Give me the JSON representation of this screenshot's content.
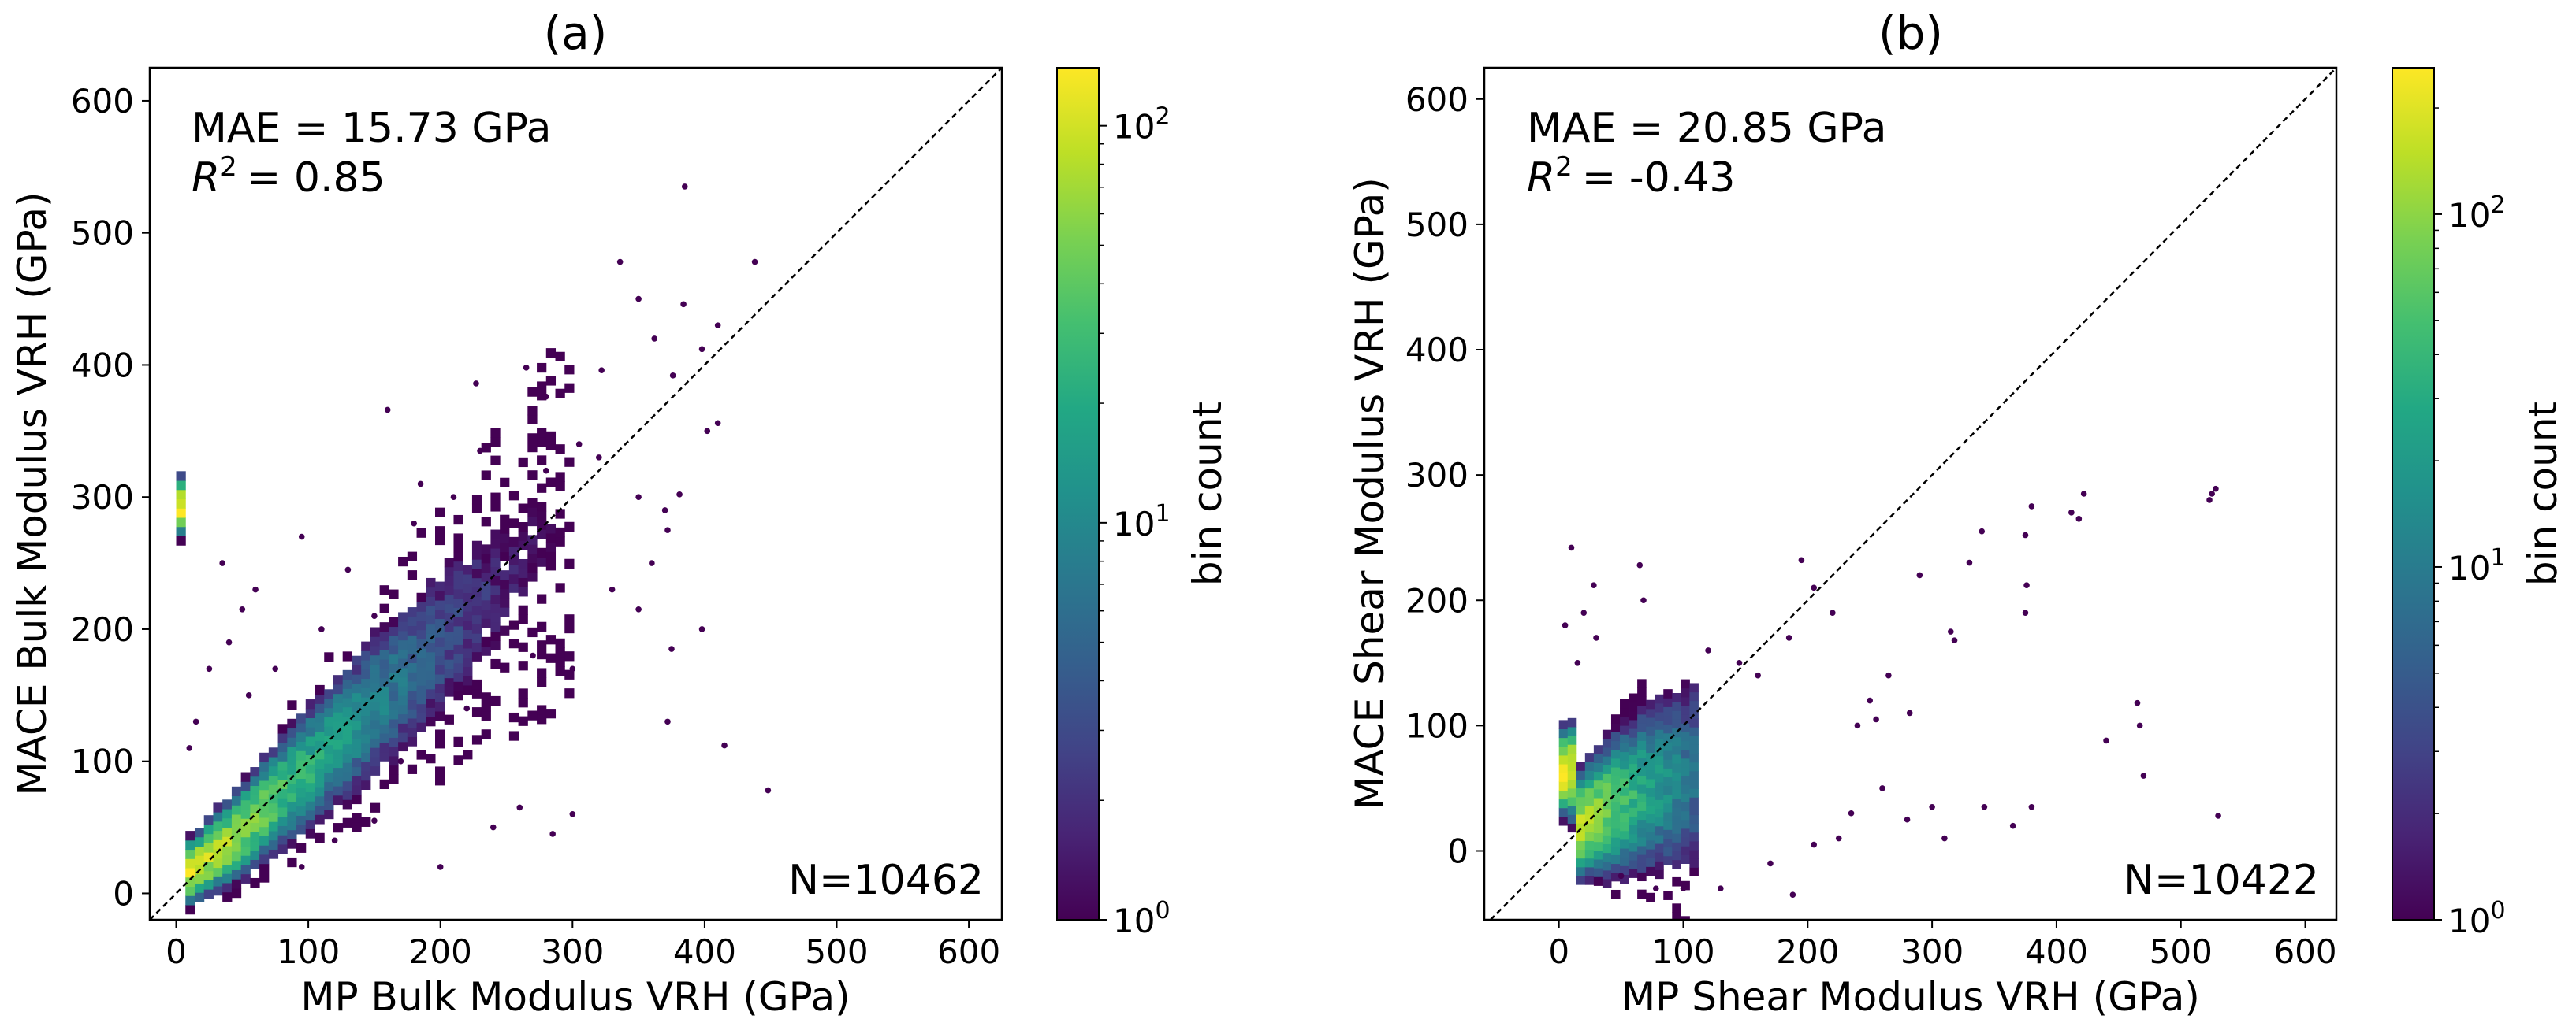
{
  "chart_data": [
    {
      "type": "scatter",
      "panel_label": "(a)",
      "xlabel": "MP Bulk Modulus VRH (GPa)",
      "ylabel": "MACE Bulk Modulus VRH (GPa)",
      "xlim": [
        -20,
        625
      ],
      "ylim": [
        -20,
        625
      ],
      "xticks": [
        0,
        100,
        200,
        300,
        400,
        500,
        600
      ],
      "yticks": [
        0,
        100,
        200,
        300,
        400,
        500,
        600
      ],
      "annotations": {
        "mae": "MAE = 15.73 GPa",
        "r2_value": "= 0.85",
        "n": "N=10462"
      },
      "colorbar": {
        "label": "bin count",
        "scale": "log",
        "min": 1,
        "max": 140,
        "ticks": [
          "10",
          "10",
          "10"
        ],
        "tick_exponents": [
          "0",
          "1",
          "2"
        ],
        "tick_values": [
          1,
          10,
          100
        ]
      },
      "diagonal": "y = x",
      "density_ridge": {
        "center": [
          [
            5,
            12
          ],
          [
            40,
            38
          ],
          [
            100,
            95
          ],
          [
            180,
            170
          ],
          [
            240,
            230
          ],
          [
            300,
            290
          ]
        ],
        "peak_count": 140
      },
      "outliers": [
        [
          385,
          535
        ],
        [
          336,
          478
        ],
        [
          384,
          446
        ],
        [
          438,
          478
        ],
        [
          410,
          430
        ],
        [
          350,
          450
        ],
        [
          362,
          420
        ],
        [
          398,
          412
        ],
        [
          376,
          392
        ],
        [
          410,
          356
        ],
        [
          322,
          396
        ],
        [
          265,
          398
        ],
        [
          280,
          376
        ],
        [
          227,
          386
        ],
        [
          160,
          366
        ],
        [
          305,
          340
        ],
        [
          280,
          320
        ],
        [
          350,
          300
        ],
        [
          370,
          290
        ],
        [
          372,
          275
        ],
        [
          402,
          350
        ],
        [
          381,
          302
        ],
        [
          360,
          250
        ],
        [
          398,
          200
        ],
        [
          350,
          215
        ],
        [
          375,
          185
        ],
        [
          415,
          112
        ],
        [
          448,
          78
        ],
        [
          372,
          130
        ],
        [
          260,
          65
        ],
        [
          285,
          45
        ],
        [
          300,
          60
        ],
        [
          200,
          20
        ],
        [
          240,
          50
        ],
        [
          150,
          55
        ],
        [
          120,
          40
        ],
        [
          95,
          20
        ],
        [
          50,
          215
        ],
        [
          60,
          230
        ],
        [
          40,
          190
        ],
        [
          35,
          250
        ],
        [
          95,
          270
        ],
        [
          130,
          245
        ],
        [
          180,
          280
        ],
        [
          210,
          300
        ],
        [
          25,
          170
        ],
        [
          15,
          130
        ],
        [
          10,
          110
        ],
        [
          320,
          330
        ],
        [
          255,
          300
        ],
        [
          230,
          335
        ],
        [
          185,
          310
        ],
        [
          300,
          170
        ],
        [
          330,
          230
        ],
        [
          270,
          180
        ],
        [
          220,
          140
        ],
        [
          170,
          100
        ],
        [
          150,
          210
        ],
        [
          75,
          170
        ],
        [
          55,
          150
        ],
        [
          110,
          200
        ]
      ]
    },
    {
      "type": "scatter",
      "panel_label": "(b)",
      "xlabel": "MP Shear Modulus VRH (GPa)",
      "ylabel": "MACE Shear Modulus VRH (GPa)",
      "xlim": [
        -60,
        625
      ],
      "ylim": [
        -55,
        625
      ],
      "xticks": [
        0,
        100,
        200,
        300,
        400,
        500,
        600
      ],
      "yticks": [
        0,
        100,
        200,
        300,
        400,
        500,
        600
      ],
      "annotations": {
        "mae": "MAE = 20.85 GPa",
        "r2_value": "= -0.43",
        "n": "N=10422"
      },
      "colorbar": {
        "label": "bin count",
        "scale": "log",
        "min": 1,
        "max": 260,
        "ticks": [
          "10",
          "10",
          "10"
        ],
        "tick_exponents": [
          "0",
          "1",
          "2"
        ],
        "tick_values": [
          1,
          10,
          100
        ]
      },
      "diagonal": "y = x",
      "density_ridge": {
        "center": [
          [
            8,
            12
          ],
          [
            25,
            25
          ],
          [
            50,
            38
          ],
          [
            80,
            50
          ],
          [
            110,
            60
          ]
        ],
        "peak_count": 260
      },
      "outliers": [
        [
          525,
          285
        ],
        [
          528,
          289
        ],
        [
          523,
          280
        ],
        [
          422,
          285
        ],
        [
          412,
          270
        ],
        [
          418,
          265
        ],
        [
          380,
          275
        ],
        [
          375,
          252
        ],
        [
          376,
          212
        ],
        [
          375,
          190
        ],
        [
          340,
          255
        ],
        [
          330,
          230
        ],
        [
          290,
          220
        ],
        [
          315,
          175
        ],
        [
          318,
          168
        ],
        [
          465,
          118
        ],
        [
          467,
          100
        ],
        [
          470,
          60
        ],
        [
          530,
          28
        ],
        [
          440,
          88
        ],
        [
          380,
          35
        ],
        [
          342,
          35
        ],
        [
          365,
          20
        ],
        [
          310,
          10
        ],
        [
          300,
          35
        ],
        [
          280,
          25
        ],
        [
          235,
          30
        ],
        [
          188,
          -35
        ],
        [
          130,
          -30
        ],
        [
          100,
          -30
        ],
        [
          78,
          -30
        ],
        [
          50,
          -20
        ],
        [
          10,
          242
        ],
        [
          28,
          212
        ],
        [
          65,
          228
        ],
        [
          68,
          200
        ],
        [
          195,
          232
        ],
        [
          205,
          210
        ],
        [
          220,
          190
        ],
        [
          185,
          170
        ],
        [
          265,
          140
        ],
        [
          250,
          120
        ],
        [
          255,
          105
        ],
        [
          240,
          100
        ],
        [
          282,
          110
        ],
        [
          15,
          150
        ],
        [
          30,
          170
        ],
        [
          20,
          190
        ],
        [
          5,
          180
        ],
        [
          120,
          160
        ],
        [
          145,
          150
        ],
        [
          160,
          140
        ],
        [
          260,
          50
        ],
        [
          205,
          5
        ],
        [
          225,
          10
        ],
        [
          170,
          -10
        ]
      ]
    }
  ]
}
